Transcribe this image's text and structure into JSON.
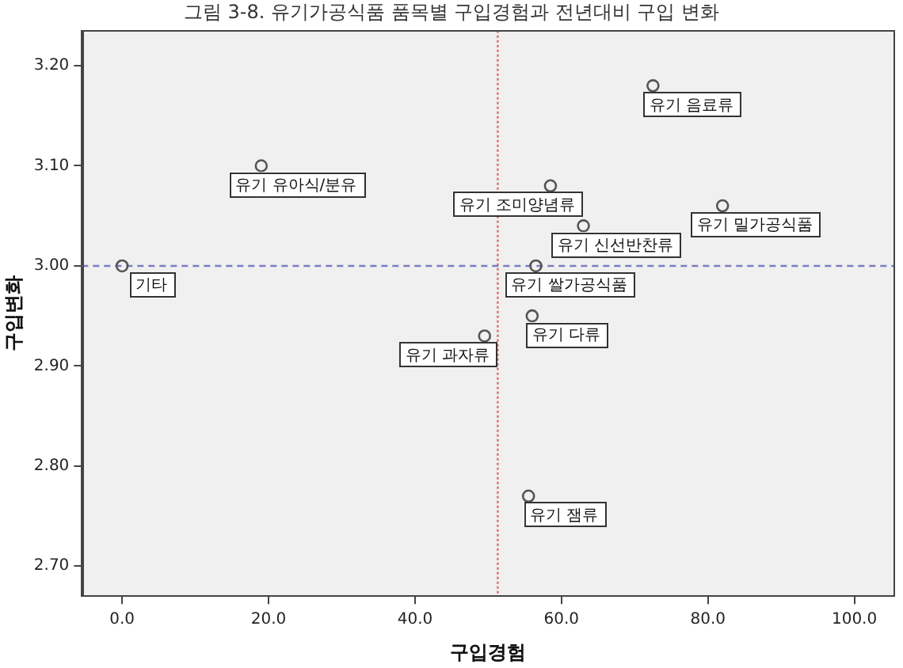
{
  "chart_data": {
    "type": "scatter",
    "title": "그림 3-8. 유기가공식품 품목별 구입경험과 전년대비 구입 변화",
    "xlabel": "구입경험",
    "ylabel": "구입변화",
    "x": [
      72.5,
      19,
      58.5,
      82,
      63,
      0,
      56.5,
      56,
      49.5,
      55.5
    ],
    "values": [
      3.18,
      3.1,
      3.08,
      3.06,
      3.04,
      3.0,
      3.0,
      2.95,
      2.93,
      2.77
    ],
    "color": "#555555",
    "marker": "circle",
    "grid": false,
    "legend": false,
    "xlim": [
      -5.5,
      105.5
    ],
    "ylim": [
      2.67,
      3.235
    ],
    "xticks": [
      {
        "value": 0,
        "label": "0.0"
      },
      {
        "value": 20,
        "label": "20.0"
      },
      {
        "value": 40,
        "label": "40.0"
      },
      {
        "value": 60,
        "label": "60.0"
      },
      {
        "value": 80,
        "label": "80.0"
      },
      {
        "value": 100,
        "label": "100.0"
      }
    ],
    "yticks": [
      {
        "value": 2.7,
        "label": "2.70"
      },
      {
        "value": 2.8,
        "label": "2.80"
      },
      {
        "value": 2.9,
        "label": "2.90"
      },
      {
        "value": 3.0,
        "label": "3.00"
      },
      {
        "value": 3.1,
        "label": "3.10"
      },
      {
        "value": 3.2,
        "label": "3.20"
      }
    ],
    "ref_lines": [
      {
        "axis": "x",
        "value": 51.3,
        "color": "#e06a6a",
        "line_style": "dotted"
      },
      {
        "axis": "y",
        "value": 3.0,
        "color": "#7c7cc4",
        "line_style": "dashed"
      }
    ],
    "annotations": [
      {
        "text": "유기 음료류",
        "x": 72.5,
        "y": 3.18
      },
      {
        "text": "유기 유아식/분유",
        "x": 19,
        "y": 3.1
      },
      {
        "text": "유기 조미양념류",
        "x": 58.5,
        "y": 3.08
      },
      {
        "text": "유기 밀가공식품",
        "x": 82,
        "y": 3.06
      },
      {
        "text": "유기 신선반찬류",
        "x": 63,
        "y": 3.04
      },
      {
        "text": "기타",
        "x": 0,
        "y": 3.0
      },
      {
        "text": "유기 쌀가공식품",
        "x": 56.5,
        "y": 3.0
      },
      {
        "text": "유기 다류",
        "x": 56,
        "y": 2.95
      },
      {
        "text": "유기 과자류",
        "x": 49.5,
        "y": 2.93
      },
      {
        "text": "유기 잼류",
        "x": 55.5,
        "y": 2.77
      }
    ]
  }
}
